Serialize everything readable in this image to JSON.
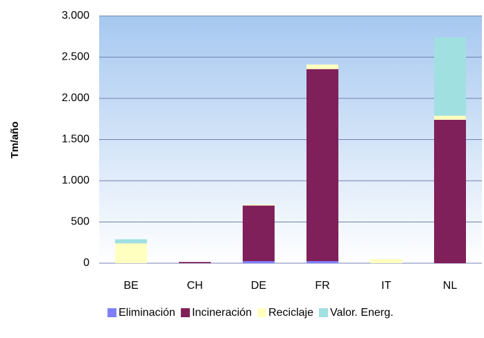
{
  "chart_data": {
    "type": "bar",
    "stacked": true,
    "y_label": "Tm/año",
    "categories": [
      "BE",
      "CH",
      "DE",
      "FR",
      "IT",
      "NL"
    ],
    "series": [
      {
        "name": "Eliminación",
        "color": "#8080ff",
        "values": [
          0,
          0,
          25,
          25,
          0,
          0
        ]
      },
      {
        "name": "Incineración",
        "color": "#80205a",
        "values": [
          0,
          15,
          675,
          2330,
          0,
          1740
        ]
      },
      {
        "name": "Reciclaje",
        "color": "#ffffc0",
        "values": [
          240,
          0,
          10,
          55,
          50,
          50
        ]
      },
      {
        "name": "Valor. Energ.",
        "color": "#a0e0e0",
        "values": [
          50,
          0,
          0,
          0,
          0,
          950
        ]
      }
    ],
    "ylim": [
      0,
      3000
    ],
    "yticks": [
      {
        "value": 0,
        "label": "0"
      },
      {
        "value": 500,
        "label": "500"
      },
      {
        "value": 1000,
        "label": "1.000"
      },
      {
        "value": 1500,
        "label": "1.500"
      },
      {
        "value": 2000,
        "label": "2.000"
      },
      {
        "value": 2500,
        "label": "2.500"
      },
      {
        "value": 3000,
        "label": "3.000"
      }
    ],
    "grid": true,
    "legend": "bottom"
  }
}
